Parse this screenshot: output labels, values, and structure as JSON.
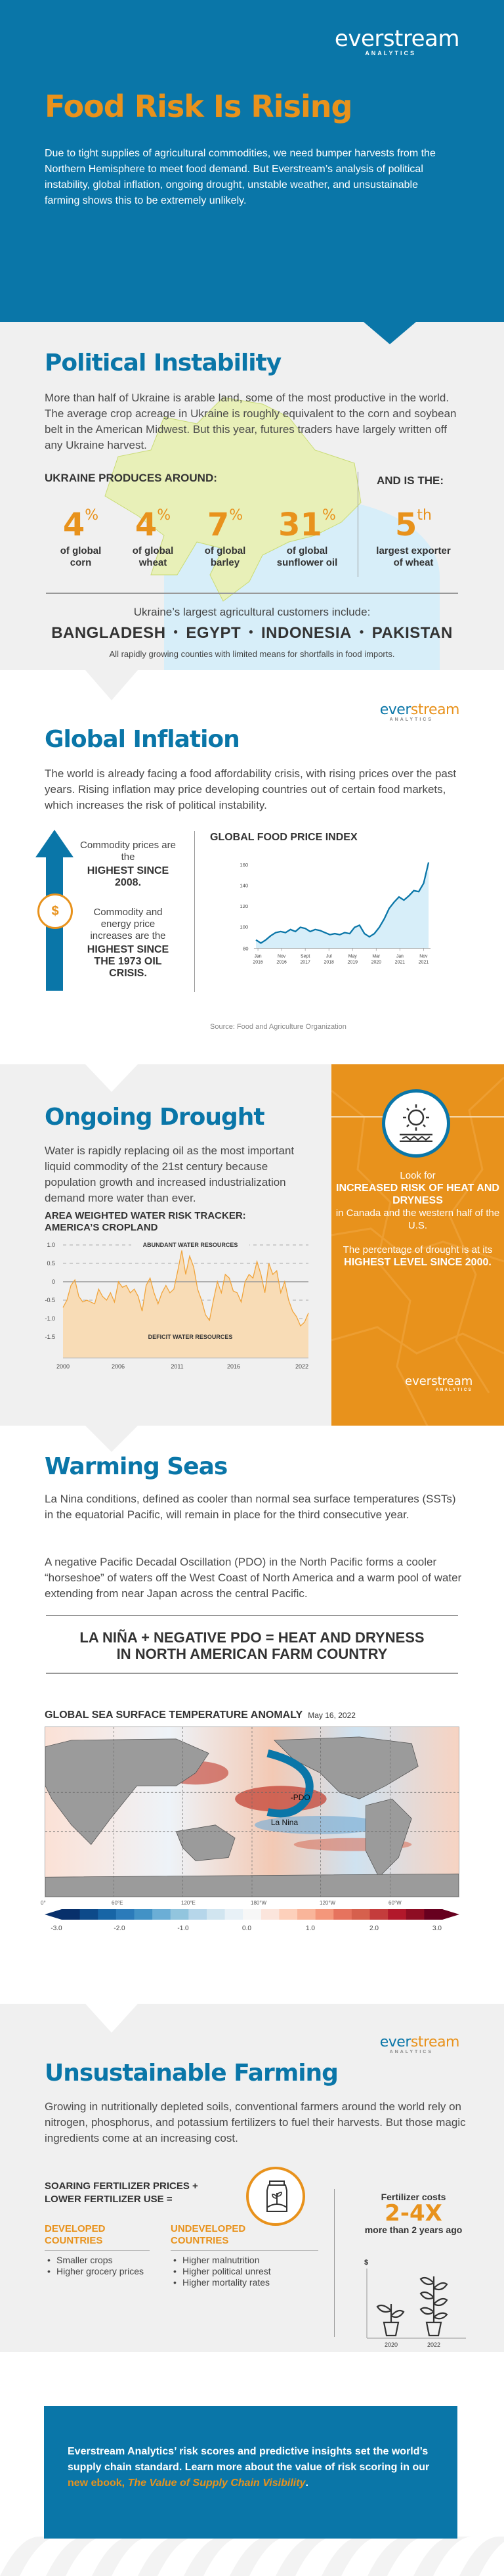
{
  "brand": {
    "name": "everstream",
    "name_part1": "ever",
    "name_part2": "stream",
    "sub": "ANALYTICS",
    "colors": {
      "blue": "#0a76a8",
      "orange": "#e8921c",
      "light_gray": "#f0f0f0"
    }
  },
  "hero": {
    "title": "Food Risk Is Rising",
    "intro": "Due to tight supplies of agricultural commodities, we need bumper harvests from the Northern Hemisphere to meet food demand. But Everstream’s analysis of political instability, global inflation, ongoing drought, unstable weather, and unsustainable farming shows this to be extremely unlikely."
  },
  "political": {
    "heading": "Political Instability",
    "description": "More than half of Ukraine is arable land, some of the most productive in the world. The average crop acreage in Ukraine is roughly equivalent to the corn and soybean belt in the American Midwest. But this year, futures traders have largely written off any Ukraine harvest.",
    "produces_label": "UKRAINE PRODUCES AROUND:",
    "stats": [
      {
        "value": "4",
        "unit": "%",
        "label1": "of global",
        "label2": "corn"
      },
      {
        "value": "4",
        "unit": "%",
        "label1": "of global",
        "label2": "wheat"
      },
      {
        "value": "7",
        "unit": "%",
        "label1": "of global",
        "label2": "barley"
      },
      {
        "value": "31",
        "unit": "%",
        "label1": "of global",
        "label2": "sunflower oil"
      }
    ],
    "and_label": "AND IS THE:",
    "rank": {
      "value": "5",
      "suffix": "th",
      "label1": "largest exporter",
      "label2": "of wheat"
    },
    "customers_lead": "Ukraine’s largest agricultural customers include:",
    "customers": [
      "BANGLADESH",
      "EGYPT",
      "INDONESIA",
      "PAKISTAN"
    ],
    "customers_note": "All rapidly growing counties with limited means for shortfalls in food imports."
  },
  "inflation": {
    "heading": "Global Inflation",
    "description": "The world is already facing a food affordability crisis, with rising prices over the past years. Rising inflation may price developing countries out of certain food markets, which increases the risk of political instability.",
    "fact1_lead": "Commodity prices are the",
    "fact1_bold": "HIGHEST SINCE 2008.",
    "fact2_lead": "Commodity and energy price increases are the",
    "fact2_bold": "HIGHEST SINCE THE 1973 OIL CRISIS.",
    "tag_icon_glyph": "$",
    "chart_title": "GLOBAL FOOD PRICE INDEX",
    "source": "Source: Food and Agriculture Organization"
  },
  "drought": {
    "heading": "Ongoing Drought",
    "description": "Water is rapidly replacing oil as the most important liquid commodity of the 21st century because population growth and increased industrialization demand more water than ever.",
    "chart_title_1": "AREA WEIGHTED WATER RISK TRACKER:",
    "chart_title_2": "AMERICA’S CROPLAND",
    "panel": {
      "lead1": "Look for",
      "bold1": "INCREASED RISK OF HEAT AND DRYNESS",
      "tail1": "in Canada and the western half of the U.S.",
      "lead2": "The percentage of drought is at its",
      "bold2": "HIGHEST LEVEL SINCE 2000."
    }
  },
  "warming": {
    "heading": "Warming Seas",
    "p1": "La Nina conditions, defined as cooler than normal sea surface temperatures (SSTs) in the equatorial Pacific, will remain in place for the third consecutive year.",
    "p2": "A negative Pacific Decadal Oscillation (PDO) in the North Pacific forms a cooler “horseshoe” of waters off the West Coast of North America and a warm pool of water extending from near Japan across the central Pacific.",
    "equation_line1": "LA NIÑA + NEGATIVE PDO = HEAT AND DRYNESS",
    "equation_line2": "IN NORTH AMERICAN FARM COUNTRY",
    "map_title": "GLOBAL SEA SURFACE TEMPERATURE ANOMALY",
    "map_date": "May 16, 2022",
    "map_labels": {
      "pdo": "-PDO",
      "lanina": "La Nina"
    },
    "lon_ticks": [
      "0°",
      "60°E",
      "120°E",
      "180°W",
      "120°W",
      "60°W"
    ],
    "colorbar_ticks": [
      "-3.0",
      "-2.0",
      "-1.0",
      "0.0",
      "1.0",
      "2.0",
      "3.0"
    ]
  },
  "farming": {
    "heading": "Unsustainable Farming",
    "description": "Growing in nutritionally depleted soils, conventional farmers around the world rely on nitrogen, phosphorus, and potassium fertilizers to fuel their harvests. But those magic ingredients come at an increasing cost.",
    "equation_1": "SOARING FERTILIZER PRICES +",
    "equation_2": "LOWER FERTILIZER USE =",
    "developed": {
      "head1": "DEVELOPED",
      "head2": "COUNTRIES",
      "items": [
        "Smaller crops",
        "Higher grocery prices"
      ]
    },
    "undeveloped": {
      "head1": "UNDEVELOPED",
      "head2": "COUNTRIES",
      "items": [
        "Higher malnutrition",
        "Higher political unrest",
        "Higher mortality rates"
      ]
    },
    "cost_lead": "Fertilizer costs",
    "cost_value": "2-4X",
    "cost_tail": "more than 2 years ago",
    "plant_axis": "$",
    "plant_years": [
      "2020",
      "2022"
    ]
  },
  "cta": {
    "text": "Everstream Analytics’ risk scores and predictive insights set the world’s supply chain standard. Learn more about the value of risk scoring in our ",
    "link_prefix": "new ebook, ",
    "link_title": "The Value of Supply Chain Visibility",
    "end": "."
  },
  "chart_data": [
    {
      "type": "area",
      "title": "GLOBAL FOOD PRICE INDEX",
      "xlabel": "",
      "ylabel": "",
      "ylim": [
        80,
        160
      ],
      "yticks": [
        80,
        100,
        120,
        140,
        160
      ],
      "x": [
        "Jan 2016",
        "Nov 2016",
        "Sept 2017",
        "Jul 2018",
        "May 2019",
        "Mar 2020",
        "Jan 2021",
        "Nov 2021"
      ],
      "values": [
        85,
        95,
        98,
        95,
        94,
        98,
        113,
        136
      ],
      "series_detail": [
        88,
        85,
        88,
        92,
        95,
        96,
        95,
        98,
        96,
        100,
        99,
        96,
        98,
        97,
        95,
        93,
        94,
        93,
        95,
        94,
        100,
        102,
        94,
        91,
        94,
        100,
        108,
        118,
        124,
        129,
        126,
        130,
        135,
        134,
        142,
        162
      ],
      "grid": false,
      "source": "Source: Food and Agriculture Organization"
    },
    {
      "type": "area",
      "title": "AREA WEIGHTED WATER RISK TRACKER: AMERICA’S CROPLAND",
      "ylim": [
        -2.0,
        1.0
      ],
      "yticks": [
        1.0,
        0.5,
        0,
        -0.5,
        -1.0,
        -1.5
      ],
      "x": [
        "2000",
        "2006",
        "2011",
        "2016",
        "2022"
      ],
      "annotations": [
        "ABUNDANT WATER RESOURCES",
        "DEFICIT WATER RESOURCES"
      ],
      "series_detail": [
        -0.7,
        -0.5,
        -0.1,
        0.05,
        -0.4,
        -0.55,
        -0.5,
        -0.55,
        -0.6,
        -0.2,
        -0.4,
        -0.5,
        -0.3,
        -0.55,
        0.0,
        -0.15,
        -0.1,
        -0.3,
        -0.2,
        -0.4,
        -0.8,
        -0.1,
        0.1,
        -0.3,
        -0.6,
        -0.3,
        -0.1,
        -0.3,
        -0.2,
        0.3,
        0.85,
        0.2,
        0.7,
        0.4,
        -0.2,
        -0.5,
        -0.9,
        -1.05,
        -0.5,
        0.0,
        -0.3,
        0.2,
        0.1,
        -0.25,
        -0.3,
        -0.55,
        0.0,
        0.2,
        0.1,
        0.55,
        0.2,
        -0.3,
        0.5,
        0.2,
        0.3,
        -0.3,
        0.0,
        -0.5,
        -0.8,
        -0.95,
        -1.2,
        -1.1,
        -0.85
      ],
      "grid": true
    },
    {
      "type": "heatmap",
      "title": "GLOBAL SEA SURFACE TEMPERATURE ANOMALY",
      "subtitle": "May 16, 2022",
      "x_ticks": [
        "0°",
        "60°E",
        "120°E",
        "180°W",
        "120°W",
        "60°W"
      ],
      "colorbar_range": [
        -3.0,
        3.0
      ],
      "colorbar_ticks": [
        -3.0,
        -2.0,
        -1.0,
        0.0,
        1.0,
        2.0,
        3.0
      ],
      "annotations": [
        "-PDO",
        "La Nina"
      ]
    }
  ]
}
